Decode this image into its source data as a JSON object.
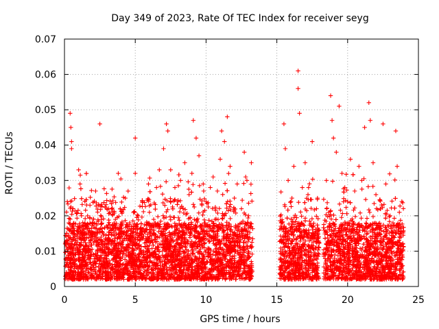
{
  "chart_data": {
    "type": "scatter",
    "title": "Day 349 of 2023, Rate Of TEC Index for receiver seyg",
    "xlabel": "GPS time / hours",
    "ylabel": "ROTI / TECUs",
    "xlim": [
      0,
      25
    ],
    "ylim": [
      0,
      0.07
    ],
    "xticks": [
      0,
      5,
      10,
      15,
      20,
      25
    ],
    "yticks": [
      0,
      0.01,
      0.02,
      0.03,
      0.04,
      0.05,
      0.06,
      0.07
    ],
    "xtick_labels": [
      "0",
      "5",
      "10",
      "15",
      "20",
      "25"
    ],
    "ytick_labels": [
      "0",
      "0.01",
      "0.02",
      "0.03",
      "0.04",
      "0.05",
      "0.06",
      "0.07"
    ],
    "grid": true,
    "marker": "+",
    "color": "#ff0000",
    "data_gaps_hours": [
      [
        13.3,
        15.2
      ],
      [
        18.0,
        18.3
      ]
    ],
    "series": [
      {
        "name": "ROTI",
        "points": [
          [
            0.1,
            0.012
          ],
          [
            0.2,
            0.024
          ],
          [
            0.3,
            0.018
          ],
          [
            0.4,
            0.049
          ],
          [
            0.45,
            0.045
          ],
          [
            0.5,
            0.039
          ],
          [
            0.5,
            0.041
          ],
          [
            0.6,
            0.022
          ],
          [
            0.7,
            0.015
          ],
          [
            0.8,
            0.009
          ],
          [
            1.0,
            0.033
          ],
          [
            1.1,
            0.029
          ],
          [
            1.2,
            0.02
          ],
          [
            1.5,
            0.017
          ],
          [
            1.8,
            0.023
          ],
          [
            2.0,
            0.014
          ],
          [
            2.2,
            0.027
          ],
          [
            2.5,
            0.046
          ],
          [
            2.6,
            0.019
          ],
          [
            2.8,
            0.012
          ],
          [
            3.0,
            0.022
          ],
          [
            3.3,
            0.016
          ],
          [
            3.6,
            0.019
          ],
          [
            3.8,
            0.032
          ],
          [
            4.0,
            0.014
          ],
          [
            4.3,
            0.025
          ],
          [
            4.6,
            0.018
          ],
          [
            4.8,
            0.01
          ],
          [
            5.0,
            0.042
          ],
          [
            5.0,
            0.032
          ],
          [
            5.2,
            0.02
          ],
          [
            5.5,
            0.024
          ],
          [
            5.8,
            0.016
          ],
          [
            6.0,
            0.021
          ],
          [
            6.3,
            0.019
          ],
          [
            6.5,
            0.028
          ],
          [
            6.7,
            0.033
          ],
          [
            7.0,
            0.039
          ],
          [
            7.2,
            0.046
          ],
          [
            7.3,
            0.044
          ],
          [
            7.5,
            0.033
          ],
          [
            7.8,
            0.028
          ],
          [
            8.0,
            0.024
          ],
          [
            8.2,
            0.03
          ],
          [
            8.5,
            0.035
          ],
          [
            8.8,
            0.026
          ],
          [
            9.0,
            0.032
          ],
          [
            9.1,
            0.047
          ],
          [
            9.3,
            0.042
          ],
          [
            9.5,
            0.037
          ],
          [
            9.8,
            0.029
          ],
          [
            10.0,
            0.024
          ],
          [
            10.3,
            0.028
          ],
          [
            10.5,
            0.031
          ],
          [
            10.8,
            0.027
          ],
          [
            11.0,
            0.036
          ],
          [
            11.1,
            0.044
          ],
          [
            11.3,
            0.041
          ],
          [
            11.5,
            0.048
          ],
          [
            11.7,
            0.034
          ],
          [
            12.0,
            0.025
          ],
          [
            12.2,
            0.029
          ],
          [
            12.5,
            0.022
          ],
          [
            12.7,
            0.038
          ],
          [
            12.8,
            0.031
          ],
          [
            13.0,
            0.02
          ],
          [
            13.2,
            0.035
          ],
          [
            15.3,
            0.018
          ],
          [
            15.5,
            0.046
          ],
          [
            15.6,
            0.039
          ],
          [
            15.8,
            0.03
          ],
          [
            16.0,
            0.024
          ],
          [
            16.2,
            0.034
          ],
          [
            16.5,
            0.061
          ],
          [
            16.5,
            0.056
          ],
          [
            16.6,
            0.049
          ],
          [
            16.8,
            0.028
          ],
          [
            17.0,
            0.035
          ],
          [
            17.2,
            0.026
          ],
          [
            17.5,
            0.041
          ],
          [
            17.8,
            0.022
          ],
          [
            18.5,
            0.03
          ],
          [
            18.8,
            0.054
          ],
          [
            18.9,
            0.047
          ],
          [
            19.0,
            0.042
          ],
          [
            19.2,
            0.038
          ],
          [
            19.4,
            0.051
          ],
          [
            19.6,
            0.032
          ],
          [
            19.8,
            0.028
          ],
          [
            20.0,
            0.024
          ],
          [
            20.2,
            0.036
          ],
          [
            20.5,
            0.027
          ],
          [
            20.8,
            0.034
          ],
          [
            21.0,
            0.03
          ],
          [
            21.2,
            0.045
          ],
          [
            21.5,
            0.052
          ],
          [
            21.6,
            0.047
          ],
          [
            21.8,
            0.035
          ],
          [
            22.0,
            0.026
          ],
          [
            22.3,
            0.022
          ],
          [
            22.5,
            0.046
          ],
          [
            22.7,
            0.029
          ],
          [
            23.0,
            0.02
          ],
          [
            23.2,
            0.018
          ],
          [
            23.4,
            0.044
          ],
          [
            23.5,
            0.034
          ],
          [
            23.7,
            0.015
          ],
          [
            23.9,
            0.012
          ]
        ]
      }
    ]
  }
}
